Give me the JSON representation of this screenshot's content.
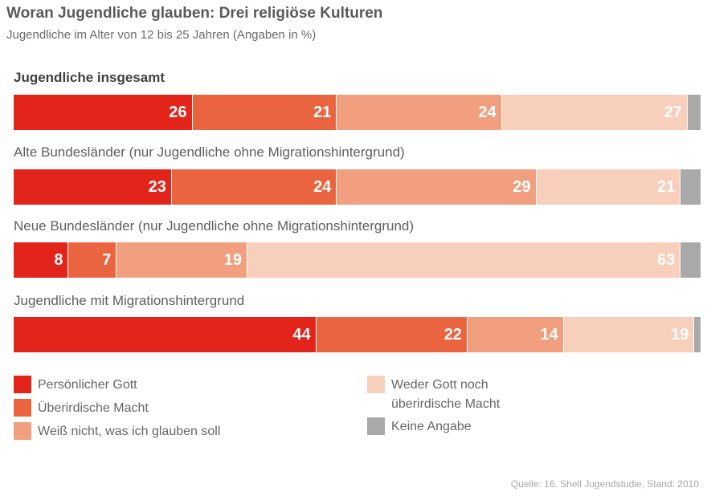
{
  "chart_data": {
    "type": "bar",
    "orientation": "horizontal",
    "stacked": true,
    "title": "Woran Jugendliche glauben: Drei religiöse Kulturen",
    "subtitle": "Jugendliche im Alter von 12 bis 25 Jahren (Angaben in %)",
    "categories": [
      "Jugendliche insgesamt",
      "Alte Bundesländer (nur Jugendliche ohne Migrationshintergrund)",
      "Neue Bundesländer (nur Jugendliche ohne Migrationshintergrund)",
      "Jugendliche mit Migrationshintergrund"
    ],
    "series": [
      {
        "name": "Persönlicher Gott",
        "color": "#e3241b",
        "values": [
          26,
          23,
          8,
          44
        ]
      },
      {
        "name": "Überirdische Macht",
        "color": "#ea6440",
        "values": [
          21,
          24,
          7,
          22
        ]
      },
      {
        "name": "Weiß nicht, was ich glauben soll",
        "color": "#f19f7e",
        "values": [
          24,
          29,
          19,
          14
        ]
      },
      {
        "name": "Weder Gott noch überirdische Macht",
        "color": "#f8cfba",
        "values": [
          27,
          21,
          63,
          19
        ]
      },
      {
        "name": "Keine Angabe",
        "color": "#a9a9a9",
        "values": [
          2,
          3,
          3,
          1
        ]
      }
    ],
    "xlim": [
      0,
      100
    ],
    "legend_position": "bottom",
    "source": "Quelle: 16. Shell Jugendstudie, Stand: 2010"
  }
}
